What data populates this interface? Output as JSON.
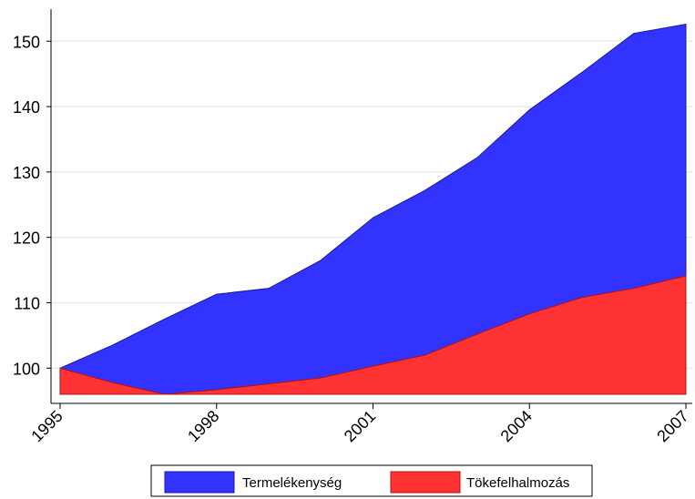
{
  "chart_data": {
    "type": "area",
    "x": [
      1995,
      1996,
      1997,
      1998,
      1999,
      2000,
      2001,
      2002,
      2003,
      2004,
      2005,
      2006,
      2007
    ],
    "series": [
      {
        "name": "Termelékenység",
        "color": "#3333ff",
        "values": [
          100,
          103.5,
          107.5,
          111.3,
          112.2,
          116.5,
          123,
          127.2,
          132.2,
          139.5,
          145.2,
          151.2,
          152.6
        ]
      },
      {
        "name": "Tökefelhalmozás",
        "color": "#ff3333",
        "values": [
          100,
          97.8,
          96.0,
          96.7,
          97.6,
          98.5,
          100.3,
          102.0,
          105.2,
          108.3,
          110.8,
          112.2,
          114.1
        ]
      }
    ],
    "baseline": 96,
    "ylim": [
      96,
      155
    ],
    "xlim": [
      1995,
      2007
    ],
    "yticks": [
      100,
      110,
      120,
      130,
      140,
      150
    ],
    "xticks": [
      1995,
      1998,
      2001,
      2004,
      2007
    ],
    "grid": "horizontal",
    "legend_position": "bottom",
    "title": "",
    "xlabel": "",
    "ylabel": ""
  }
}
